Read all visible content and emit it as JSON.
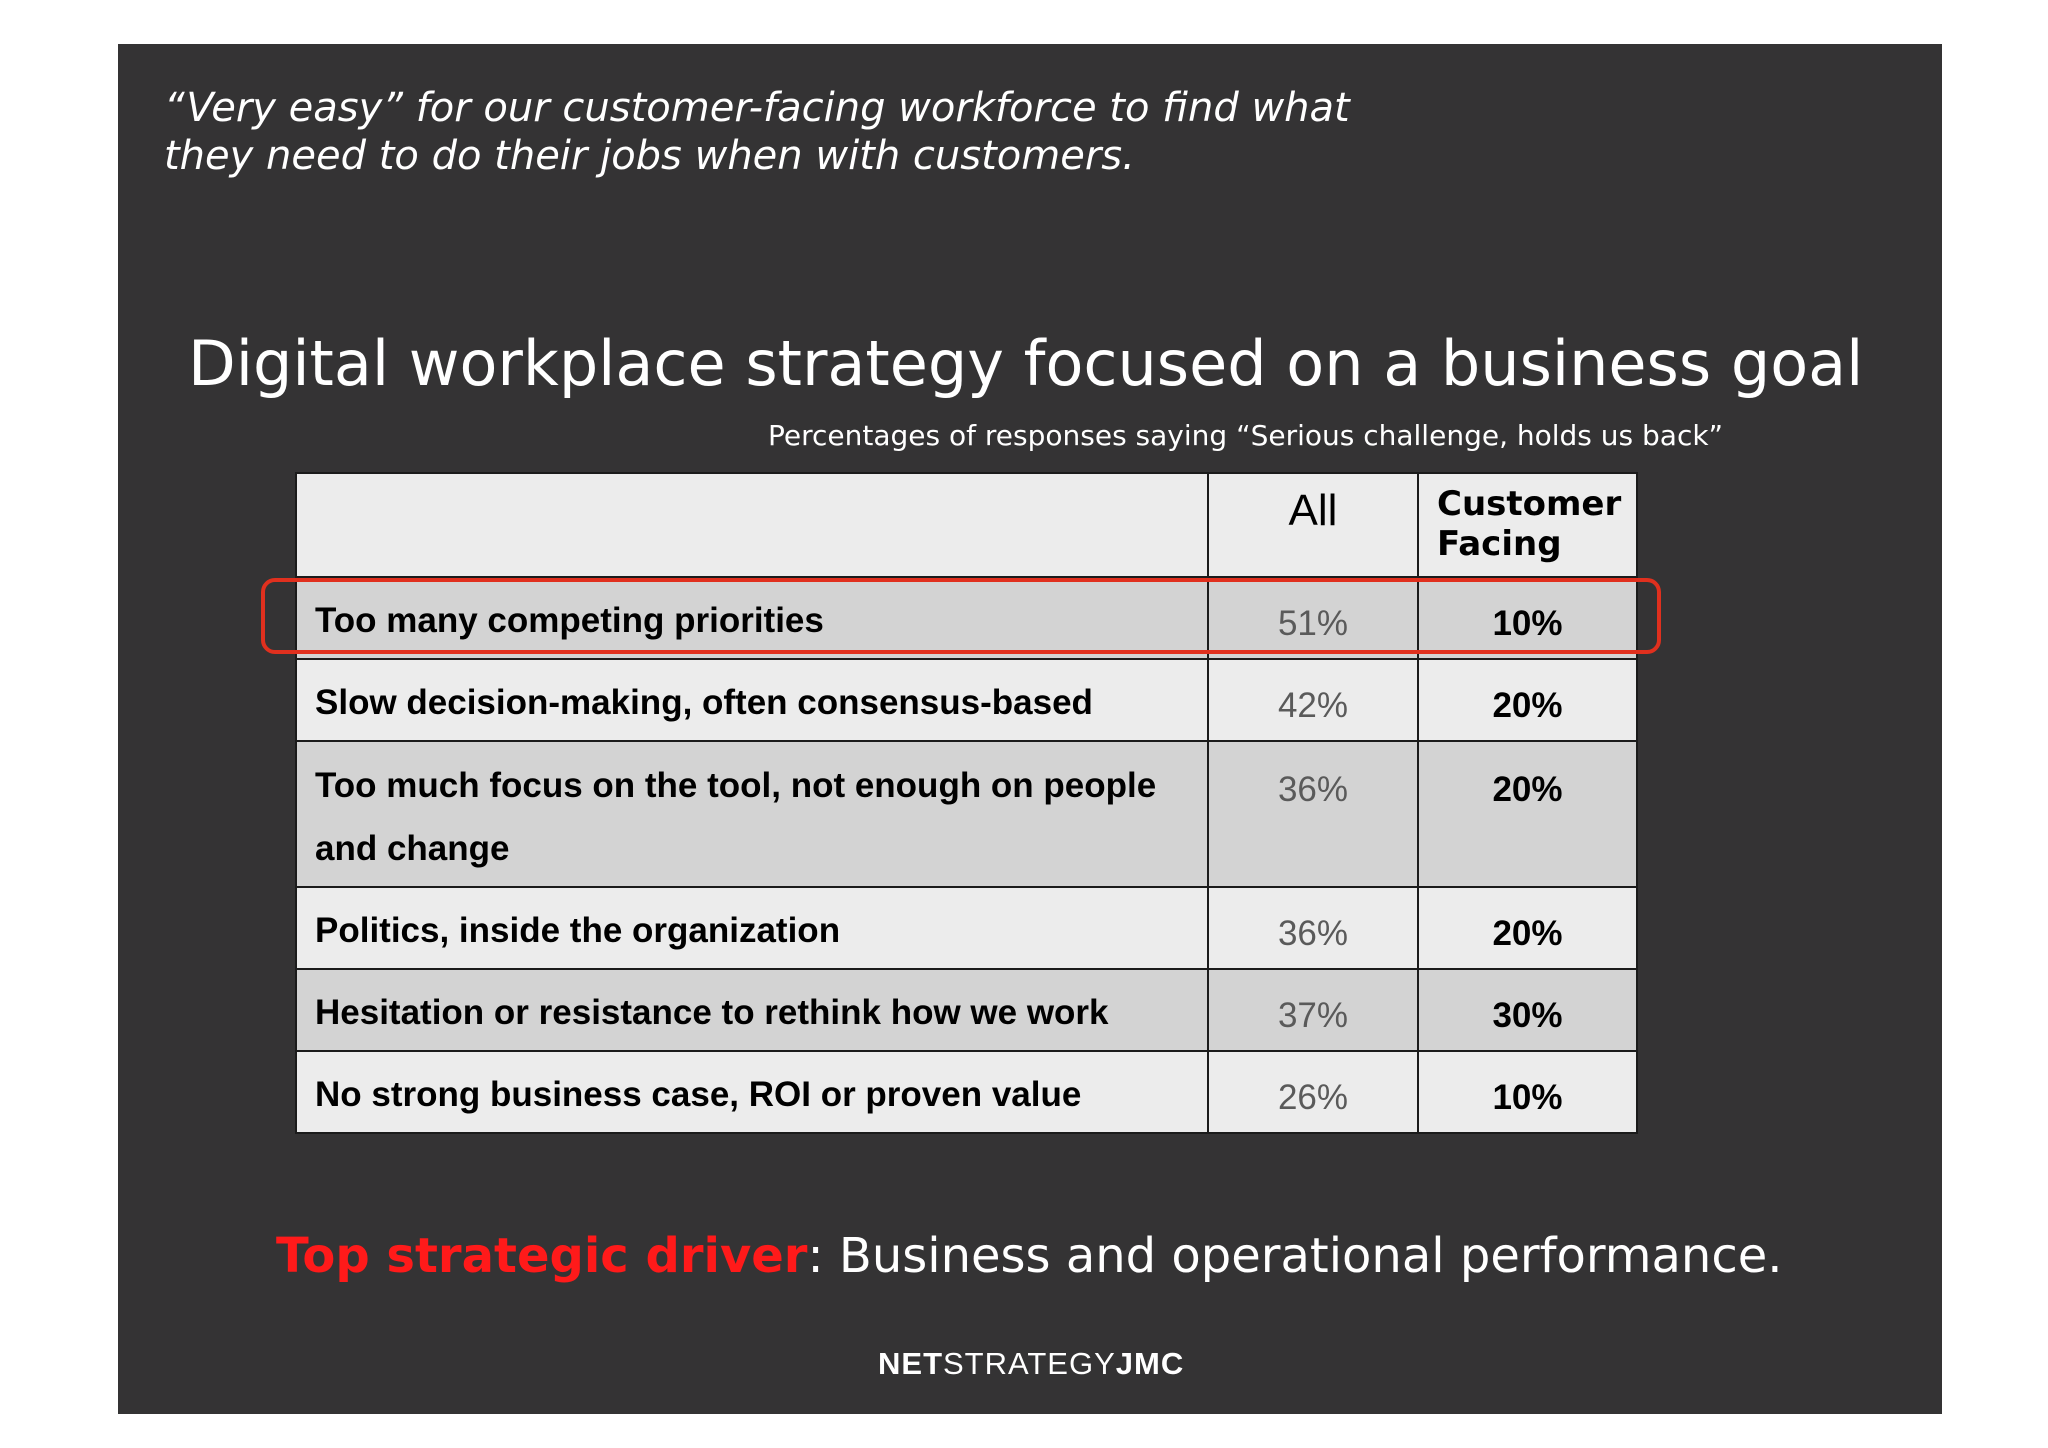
{
  "quote": {
    "line1": "“Very easy” for our customer-facing workforce to find what",
    "line2": "they need to do their jobs when with customers."
  },
  "title": "Digital workplace strategy focused on a business goal",
  "subtitle": "Percentages of responses saying “Serious challenge, holds us back”",
  "table": {
    "headers": [
      "",
      "All",
      "Customer Facing"
    ],
    "rows": [
      {
        "label": "Too many competing priorities",
        "all": "51%",
        "customer_facing": "10%"
      },
      {
        "label": "Slow decision-making, often consensus-based",
        "all": "42%",
        "customer_facing": "20%"
      },
      {
        "label": "Too much focus on the tool, not enough on people and change",
        "all": "36%",
        "customer_facing": "20%"
      },
      {
        "label": "Politics, inside the organization",
        "all": "36%",
        "customer_facing": "20%"
      },
      {
        "label": "Hesitation or resistance to rethink how we work",
        "all": "37%",
        "customer_facing": "30%"
      },
      {
        "label": "No strong business case, ROI or proven value",
        "all": "26%",
        "customer_facing": "10%"
      }
    ]
  },
  "driver": {
    "label": "Top strategic driver",
    "text": ": Business and operational performance."
  },
  "logo": {
    "part1": "NET",
    "part2": "STRATEGY",
    "part3": "JMC"
  },
  "colors": {
    "slide_background": "#343334",
    "highlight": "#e0301e",
    "accent_red": "#ff1a1a",
    "row_dark": "#d3d3d3",
    "row_light": "#ececec"
  }
}
